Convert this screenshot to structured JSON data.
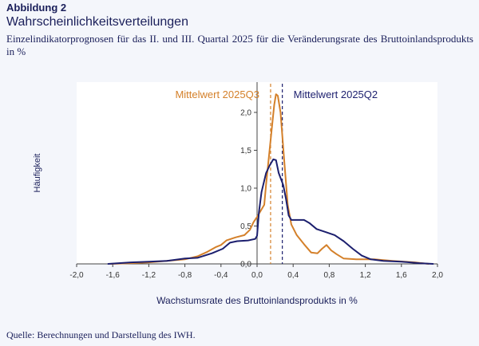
{
  "header": {
    "figure_label": "Abbildung 2",
    "title": "Wahrscheinlichkeitsverteilungen",
    "subtitle": "Einzelindikatorprognosen für das II. und III. Quartal 2025 für die Veränderungsrate des Bruttoinlandsprodukts in %"
  },
  "source": "Quelle: Berechnungen und Darstellung des IWH.",
  "chart_data": {
    "type": "line",
    "xlabel": "Wachstumsrate des Bruttoinlandsprodukts in %",
    "ylabel": "Häufigkeit",
    "xlim": [
      -2.0,
      2.0
    ],
    "ylim": [
      0,
      2.4
    ],
    "xticks": [
      -2.0,
      -1.6,
      -1.2,
      -0.8,
      -0.4,
      0.0,
      0.4,
      0.8,
      1.2,
      1.6,
      2.0
    ],
    "xtick_labels": [
      "-2,0",
      "-1,6",
      "-1,2",
      "-0,8",
      "-0,4",
      "0,0",
      "0,4",
      "0,8",
      "1,2",
      "1,6",
      "2,0"
    ],
    "yticks": [
      0.0,
      0.5,
      1.0,
      1.5,
      2.0
    ],
    "ytick_labels": [
      "0,0",
      "0,5",
      "1,0",
      "1,5",
      "2,0"
    ],
    "grid": false,
    "colors": {
      "q3": "#d4802a",
      "q2": "#1c1f6e"
    },
    "series": [
      {
        "name": "2025Q3",
        "color": "#d4802a",
        "points": [
          [
            -1.62,
            0.0
          ],
          [
            -1.4,
            0.01
          ],
          [
            -1.2,
            0.02
          ],
          [
            -1.0,
            0.04
          ],
          [
            -0.8,
            0.06
          ],
          [
            -0.66,
            0.1
          ],
          [
            -0.55,
            0.16
          ],
          [
            -0.46,
            0.22
          ],
          [
            -0.4,
            0.25
          ],
          [
            -0.34,
            0.31
          ],
          [
            -0.24,
            0.35
          ],
          [
            -0.14,
            0.38
          ],
          [
            -0.08,
            0.45
          ],
          [
            -0.04,
            0.55
          ],
          [
            0.0,
            0.62
          ],
          [
            0.04,
            0.7
          ],
          [
            0.08,
            0.78
          ],
          [
            0.1,
            1.05
          ],
          [
            0.13,
            1.4
          ],
          [
            0.16,
            1.75
          ],
          [
            0.19,
            2.1
          ],
          [
            0.21,
            2.24
          ],
          [
            0.23,
            2.22
          ],
          [
            0.26,
            2.0
          ],
          [
            0.3,
            1.38
          ],
          [
            0.34,
            0.78
          ],
          [
            0.38,
            0.52
          ],
          [
            0.44,
            0.38
          ],
          [
            0.52,
            0.26
          ],
          [
            0.6,
            0.15
          ],
          [
            0.67,
            0.14
          ],
          [
            0.72,
            0.2
          ],
          [
            0.77,
            0.25
          ],
          [
            0.82,
            0.18
          ],
          [
            0.88,
            0.13
          ],
          [
            0.96,
            0.07
          ],
          [
            1.1,
            0.06
          ],
          [
            1.3,
            0.06
          ],
          [
            1.5,
            0.04
          ],
          [
            1.75,
            0.02
          ],
          [
            1.9,
            0.0
          ]
        ]
      },
      {
        "name": "2025Q2",
        "color": "#1c1f6e",
        "points": [
          [
            -1.65,
            0.0
          ],
          [
            -1.4,
            0.02
          ],
          [
            -1.2,
            0.03
          ],
          [
            -1.0,
            0.04
          ],
          [
            -0.8,
            0.07
          ],
          [
            -0.66,
            0.08
          ],
          [
            -0.5,
            0.14
          ],
          [
            -0.38,
            0.2
          ],
          [
            -0.3,
            0.28
          ],
          [
            -0.22,
            0.3
          ],
          [
            -0.1,
            0.31
          ],
          [
            -0.02,
            0.33
          ],
          [
            0.0,
            0.37
          ],
          [
            0.02,
            0.68
          ],
          [
            0.05,
            0.95
          ],
          [
            0.1,
            1.2
          ],
          [
            0.14,
            1.3
          ],
          [
            0.18,
            1.38
          ],
          [
            0.21,
            1.37
          ],
          [
            0.24,
            1.2
          ],
          [
            0.29,
            1.04
          ],
          [
            0.32,
            0.86
          ],
          [
            0.35,
            0.64
          ],
          [
            0.38,
            0.58
          ],
          [
            0.44,
            0.58
          ],
          [
            0.52,
            0.58
          ],
          [
            0.58,
            0.54
          ],
          [
            0.66,
            0.46
          ],
          [
            0.76,
            0.42
          ],
          [
            0.86,
            0.38
          ],
          [
            0.96,
            0.3
          ],
          [
            1.06,
            0.2
          ],
          [
            1.16,
            0.11
          ],
          [
            1.26,
            0.06
          ],
          [
            1.4,
            0.04
          ],
          [
            1.6,
            0.03
          ],
          [
            1.8,
            0.01
          ],
          [
            1.95,
            0.0
          ]
        ]
      }
    ],
    "mean_lines": [
      {
        "label": "Mittelwert 2025Q3",
        "x": 0.15,
        "color": "#d4802a"
      },
      {
        "label": "Mittelwert 2025Q2",
        "x": 0.28,
        "color": "#1c1f6e"
      }
    ]
  }
}
